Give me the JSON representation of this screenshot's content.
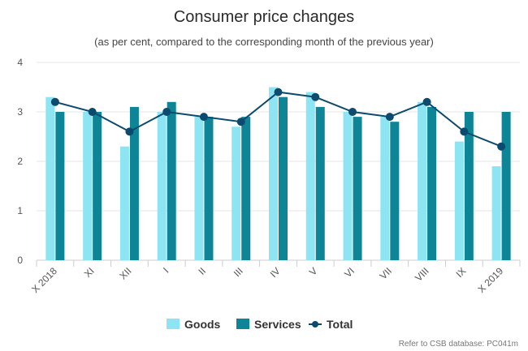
{
  "chart_data": {
    "type": "bar",
    "title": "Consumer price changes",
    "subtitle": "(as per cent, compared to the corresponding month of the previous year)",
    "categories": [
      "X 2018",
      "XI",
      "XII",
      "I",
      "II",
      "III",
      "IV",
      "V",
      "VI",
      "VII",
      "VIII",
      "IX",
      "X 2019"
    ],
    "series": [
      {
        "name": "Goods",
        "type": "bar",
        "color": "#8de4f2",
        "values": [
          3.3,
          3.0,
          2.3,
          3.0,
          2.9,
          2.7,
          3.5,
          3.4,
          3.0,
          2.9,
          3.2,
          2.4,
          1.9
        ]
      },
      {
        "name": "Services",
        "type": "bar",
        "color": "#0d8597",
        "values": [
          3.0,
          3.0,
          3.1,
          3.2,
          2.9,
          2.9,
          3.3,
          3.1,
          2.9,
          2.8,
          3.1,
          3.0,
          3.0
        ]
      },
      {
        "name": "Total",
        "type": "line",
        "color": "#0c4a6e",
        "values": [
          3.2,
          3.0,
          2.6,
          3.0,
          2.9,
          2.8,
          3.4,
          3.3,
          3.0,
          2.9,
          3.2,
          2.6,
          2.3
        ]
      }
    ],
    "ylim": [
      0,
      4
    ],
    "yticks": [
      "0",
      "1",
      "2",
      "3",
      "4"
    ],
    "grid": true,
    "legend_placement": "bottom"
  },
  "credits": "Refer to CSB database: PC041m"
}
